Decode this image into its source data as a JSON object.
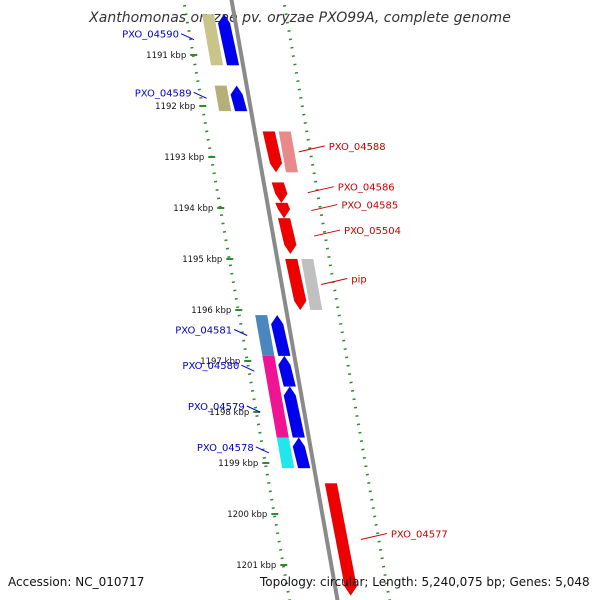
{
  "header": {
    "title": "Xanthomonas oryzae pv. oryzae PXO99A, complete genome"
  },
  "footer": {
    "accession": "Accession: NC_010717",
    "topology": "Topology: circular; Length: 5,240,075 bp; Genes: 5,048"
  },
  "colors": {
    "backbone": "#8a8a8a",
    "tick": "#2e8b2e",
    "forward_label": "#0000cc",
    "reverse_label": "#cc0000"
  },
  "ruler": {
    "ticks": [
      {
        "label": "1191 kbp",
        "kbp": 1191
      },
      {
        "label": "1192 kbp",
        "kbp": 1192
      },
      {
        "label": "1193 kbp",
        "kbp": 1193
      },
      {
        "label": "1194 kbp",
        "kbp": 1194
      },
      {
        "label": "1195 kbp",
        "kbp": 1195
      },
      {
        "label": "1196 kbp",
        "kbp": 1196
      },
      {
        "label": "1197 kbp",
        "kbp": 1197
      },
      {
        "label": "1198 kbp",
        "kbp": 1198
      },
      {
        "label": "1199 kbp",
        "kbp": 1199
      },
      {
        "label": "1200 kbp",
        "kbp": 1200
      },
      {
        "label": "1201 kbp",
        "kbp": 1201
      }
    ]
  },
  "genes": [
    {
      "label": "PXO_04590",
      "strand": "+",
      "start_kbp": 1190.2,
      "end_kbp": 1191.2,
      "color": "#0000ee",
      "pair_color": "#c8c48a"
    },
    {
      "label": "PXO_04589",
      "strand": "+",
      "start_kbp": 1191.6,
      "end_kbp": 1192.1,
      "color": "#0000ee",
      "pair_color": "#b5b078"
    },
    {
      "label": "PXO_04588",
      "strand": "-",
      "start_kbp": 1192.5,
      "end_kbp": 1193.3,
      "color": "#ee0000",
      "pair_color": "#e88a8a"
    },
    {
      "label": "PXO_04586",
      "strand": "-",
      "start_kbp": 1193.5,
      "end_kbp": 1193.9,
      "color": "#ee0000"
    },
    {
      "label": "PXO_04585",
      "strand": "-",
      "start_kbp": 1193.9,
      "end_kbp": 1194.2,
      "color": "#ee0000"
    },
    {
      "label": "PXO_05504",
      "strand": "-",
      "start_kbp": 1194.2,
      "end_kbp": 1194.9,
      "color": "#ee0000"
    },
    {
      "label": "pip",
      "strand": "-",
      "start_kbp": 1195.0,
      "end_kbp": 1196.0,
      "color": "#ee0000",
      "pair_color": "#c0c0c0"
    },
    {
      "label": "PXO_04581",
      "strand": "+",
      "start_kbp": 1196.1,
      "end_kbp": 1196.9,
      "color": "#0000ee",
      "pair_color": "#4a86c0"
    },
    {
      "label": "PXO_04580",
      "strand": "+",
      "start_kbp": 1196.9,
      "end_kbp": 1197.5,
      "color": "#0000ee",
      "pair_color": "#ee1493"
    },
    {
      "label": "PXO_04579",
      "strand": "+",
      "start_kbp": 1197.5,
      "end_kbp": 1198.5,
      "color": "#0000ee",
      "pair_color": "#ee1493"
    },
    {
      "label": "PXO_04578",
      "strand": "+",
      "start_kbp": 1198.5,
      "end_kbp": 1199.1,
      "color": "#0000ee",
      "pair_color": "#22e6ee"
    },
    {
      "label": "PXO_04577",
      "strand": "-",
      "start_kbp": 1199.4,
      "end_kbp": 1201.6,
      "color": "#ee0000"
    }
  ]
}
